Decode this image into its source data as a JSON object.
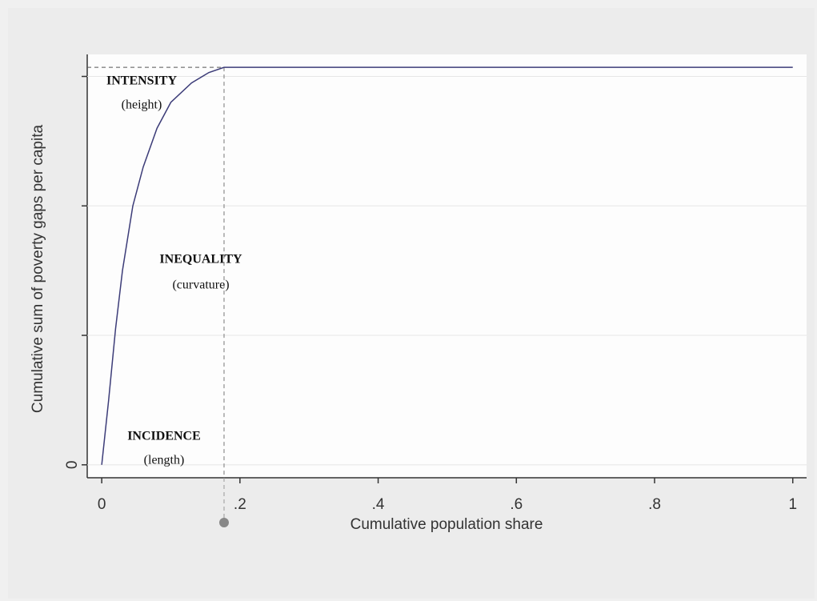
{
  "chart_data": {
    "type": "line",
    "xlabel": "Cumulative population share",
    "ylabel": "Cumulative sum of poverty gaps per capita",
    "x": [
      0,
      0.01,
      0.02,
      0.03,
      0.045,
      0.06,
      0.08,
      0.1,
      0.13,
      0.155,
      0.177,
      1
    ],
    "series": [
      {
        "color": "#3c3c78",
        "values": [
          0,
          0.5,
          1.05,
          1.5,
          2.0,
          2.3,
          2.6,
          2.8,
          2.95,
          3.03,
          3.07,
          3.07
        ]
      }
    ],
    "xlim": [
      -0.021,
      1.02
    ],
    "ylim": [
      -0.1,
      3.17
    ],
    "xticks": [
      0,
      {
        "value": 0.2,
        "label": ".2"
      },
      {
        "value": 0.4,
        "label": ".4"
      },
      {
        "value": 0.6,
        "label": ".6"
      },
      {
        "value": 0.8,
        "label": ".8"
      },
      1
    ],
    "yticks": [
      0,
      {
        "value": 1
      },
      {
        "value": 2
      },
      {
        "value": 3
      }
    ],
    "annotations": [
      "INTENSITY",
      "(height)",
      "INEQUALITY",
      "(curvature)",
      "INCIDENCE",
      "(length)"
    ],
    "grid": true
  }
}
